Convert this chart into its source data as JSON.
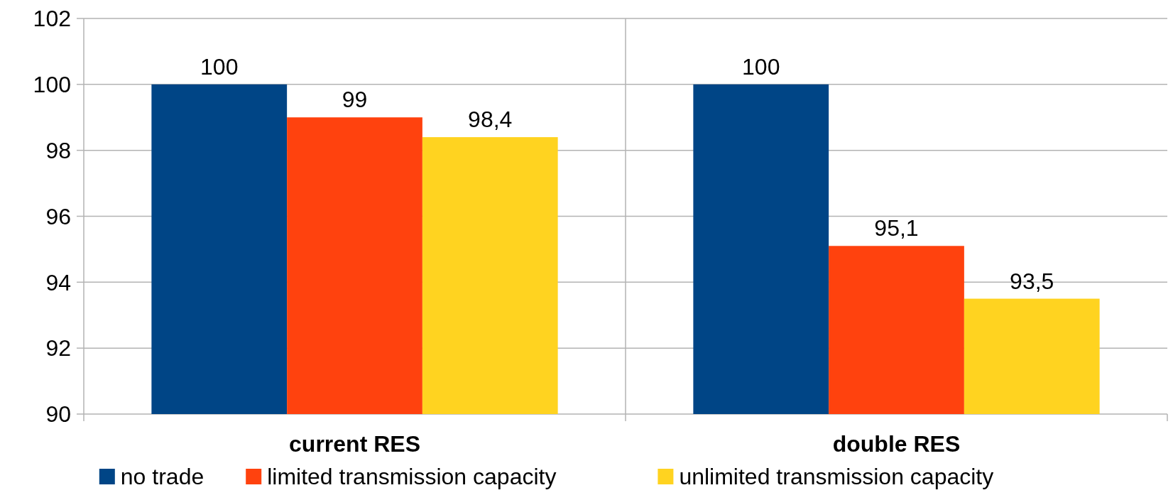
{
  "chart_data": {
    "type": "bar",
    "categories": [
      "current RES",
      "double RES"
    ],
    "series": [
      {
        "name": "no trade",
        "color": "#004586",
        "values": [
          100,
          100
        ],
        "value_labels": [
          "100",
          "100"
        ]
      },
      {
        "name": "limited transmission capacity",
        "color": "#ff420e",
        "values": [
          99,
          95.1
        ],
        "value_labels": [
          "99",
          "95,1"
        ]
      },
      {
        "name": "unlimited transmission capacity",
        "color": "#ffd320",
        "values": [
          98.4,
          93.5
        ],
        "value_labels": [
          "98,4",
          "93,5"
        ]
      }
    ],
    "ylim": [
      90,
      102
    ],
    "yticks": [
      90,
      92,
      94,
      96,
      98,
      100,
      102
    ],
    "grid": true,
    "legend": "bottom"
  }
}
